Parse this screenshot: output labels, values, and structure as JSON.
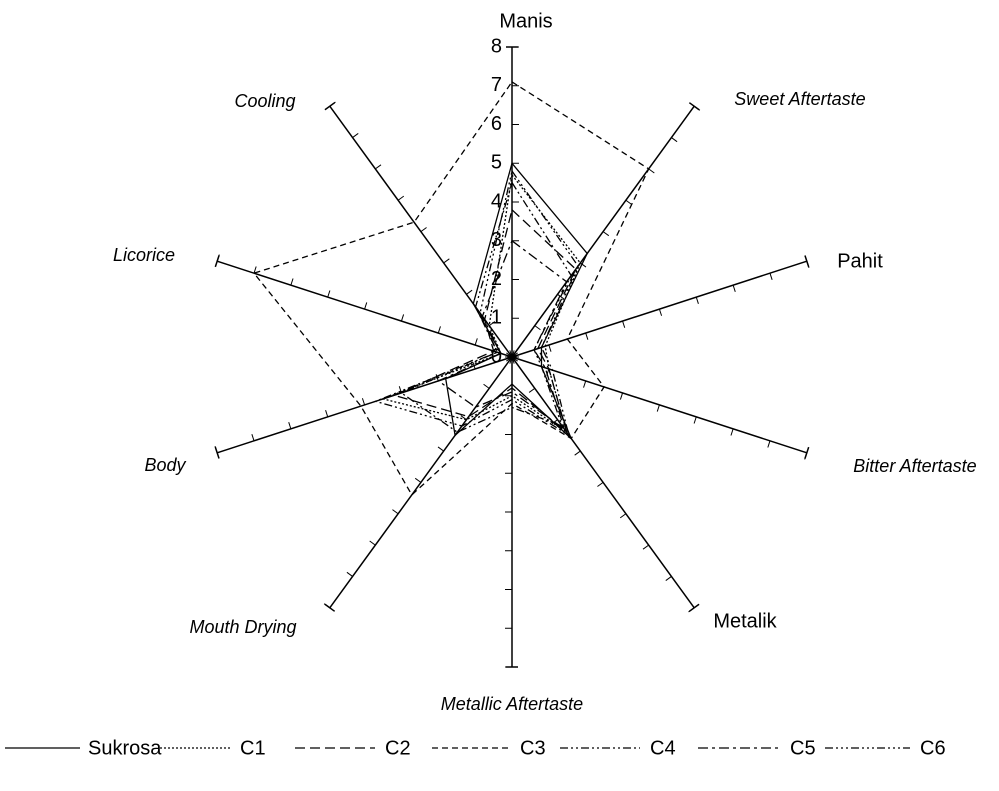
{
  "chart_data": {
    "type": "radar",
    "categories": [
      "Manis",
      "Sweet Aftertaste",
      "Pahit",
      "Bitter Aftertaste",
      "Metalik",
      "Metallic Aftertaste",
      "Mouth Drying",
      "Body",
      "Licorice",
      "Cooling"
    ],
    "rlim": [
      0,
      8
    ],
    "rticks": [
      0,
      1,
      2,
      3,
      4,
      5,
      6,
      7,
      8
    ],
    "series": [
      {
        "name": "Sukrosa",
        "color": "#000000",
        "dash": "none",
        "values": [
          5.0,
          3.3,
          0.8,
          0.8,
          2.6,
          0.7,
          2.5,
          1.8,
          0.3,
          1.7
        ]
      },
      {
        "name": "C1",
        "color": "#000000",
        "dash": "2 2",
        "values": [
          4.7,
          3.0,
          0.9,
          1.0,
          2.4,
          1.0,
          2.0,
          3.5,
          0.3,
          1.0
        ]
      },
      {
        "name": "C2",
        "color": "#000000",
        "dash": "10 5",
        "values": [
          3.8,
          2.8,
          0.7,
          1.0,
          2.4,
          0.8,
          1.9,
          3.2,
          0.5,
          1.2
        ]
      },
      {
        "name": "C3",
        "color": "#000000",
        "dash": "6 4",
        "values": [
          7.1,
          6.0,
          1.5,
          2.5,
          2.6,
          1.2,
          4.4,
          4.1,
          7.0,
          4.3
        ]
      },
      {
        "name": "C4",
        "color": "#000000",
        "dash": "8 3 2 3 2 3",
        "values": [
          4.5,
          2.6,
          0.6,
          0.8,
          2.2,
          1.3,
          2.4,
          3.0,
          0.4,
          1.6
        ]
      },
      {
        "name": "C5",
        "color": "#000000",
        "dash": "10 4 3 4",
        "values": [
          3.0,
          2.4,
          0.6,
          0.9,
          2.3,
          0.9,
          1.6,
          2.0,
          0.3,
          1.3
        ]
      },
      {
        "name": "C6",
        "color": "#000000",
        "dash": "8 3 2 3 2 3 2 3",
        "values": [
          4.8,
          2.9,
          0.8,
          1.1,
          2.5,
          1.1,
          2.2,
          3.7,
          0.4,
          1.4
        ]
      }
    ]
  }
}
